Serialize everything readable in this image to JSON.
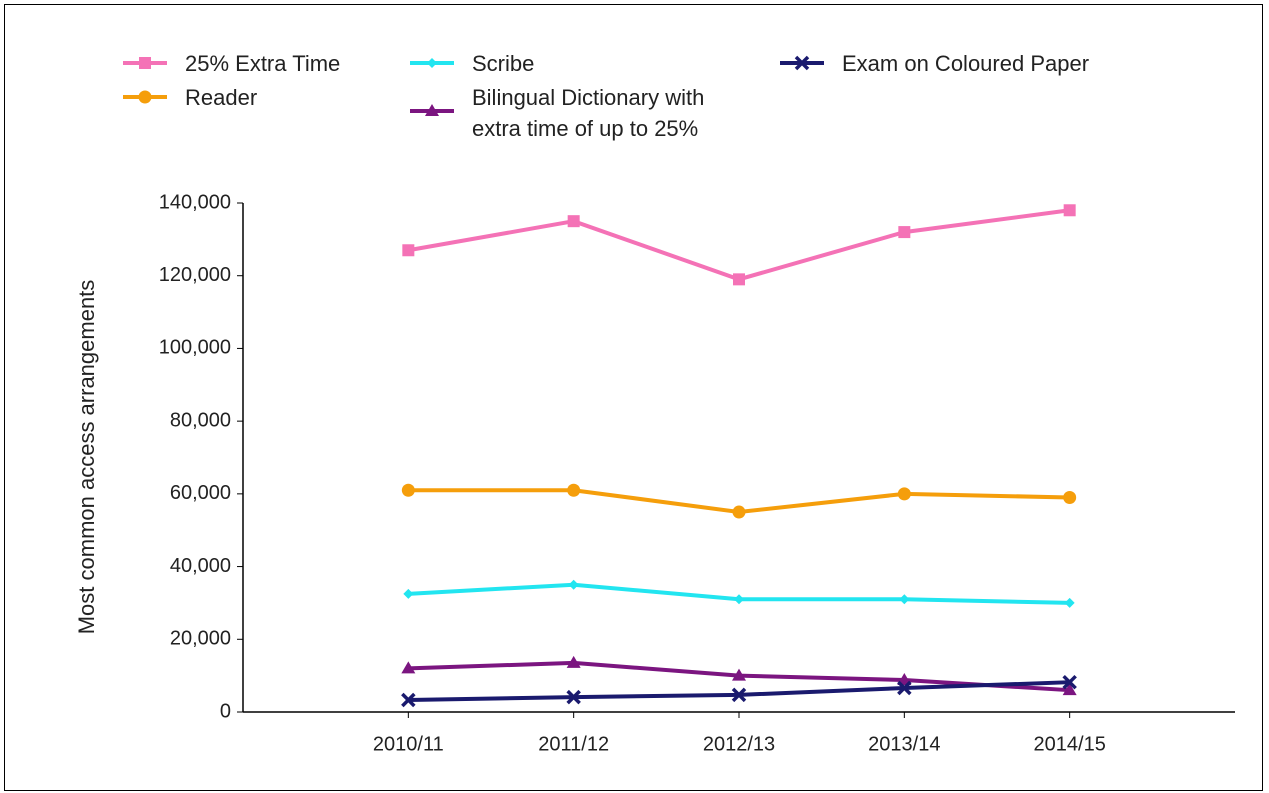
{
  "chart_data": {
    "type": "line",
    "y_label": "Most common access arrangements",
    "categories": [
      "2010/11",
      "2011/12",
      "2012/13",
      "2013/14",
      "2014/15"
    ],
    "series": [
      {
        "name": "25% Extra Time",
        "color": "#f472b6",
        "marker": "square",
        "values": [
          127000,
          135000,
          119000,
          132000,
          138000
        ]
      },
      {
        "name": "Reader",
        "color": "#f59e0b",
        "marker": "circle",
        "values": [
          61000,
          61000,
          55000,
          60000,
          59000
        ]
      },
      {
        "name": "Scribe",
        "color": "#22e5f0",
        "marker": "diamond",
        "values": [
          32500,
          35000,
          31000,
          31000,
          30000
        ]
      },
      {
        "name": "Bilingual Dictionary with extra time of up to 25%",
        "color": "#7b1580",
        "marker": "triangle",
        "values": [
          12000,
          13500,
          10000,
          8800,
          6000
        ]
      },
      {
        "name": "Exam on Coloured Paper",
        "color": "#1a1a6e",
        "marker": "x",
        "values": [
          3300,
          4100,
          4700,
          6600,
          8200
        ]
      }
    ],
    "ylim": [
      0,
      140000
    ],
    "yticks": [
      0,
      {
        "value": 20000,
        "label": "20,000"
      },
      {
        "value": 40000,
        "label": "40,000"
      },
      {
        "value": 60000,
        "label": "60,000"
      },
      {
        "value": 80000,
        "label": "80,000"
      },
      {
        "value": 100000,
        "label": "100,000"
      },
      {
        "value": 120000,
        "label": "120,000"
      },
      {
        "value": 140000,
        "label": "140,000"
      }
    ],
    "grid": false
  }
}
